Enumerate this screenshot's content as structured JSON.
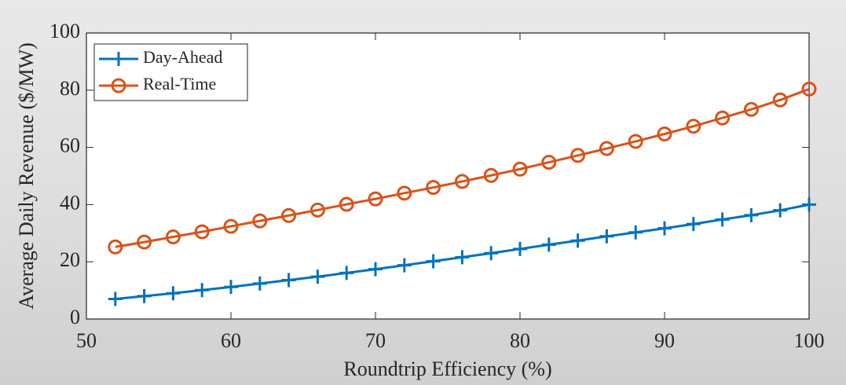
{
  "chart_data": {
    "type": "line",
    "xlabel": "Roundtrip Efficiency (%)",
    "ylabel": "Average Daily Revenue ($/MW)",
    "x": [
      52,
      54,
      56,
      58,
      60,
      62,
      64,
      66,
      68,
      70,
      72,
      74,
      76,
      78,
      80,
      82,
      84,
      86,
      88,
      90,
      92,
      94,
      96,
      98,
      100
    ],
    "series": [
      {
        "name": "Day-Ahead",
        "color": "#0072bd",
        "marker": "plus",
        "values": [
          7,
          8,
          9,
          10.1,
          11.2,
          12.4,
          13.6,
          14.8,
          16.1,
          17.4,
          18.8,
          20.2,
          21.6,
          23,
          24.5,
          26,
          27.4,
          28.9,
          30.3,
          31.7,
          33.2,
          34.8,
          36.3,
          38,
          40
        ]
      },
      {
        "name": "Real-Time",
        "color": "#d95319",
        "marker": "circle",
        "values": [
          25.2,
          26.9,
          28.7,
          30.5,
          32.4,
          34.3,
          36.2,
          38.1,
          40.1,
          42,
          44,
          46,
          48.1,
          50.2,
          52.4,
          54.8,
          57.2,
          59.6,
          62.1,
          64.7,
          67.4,
          70.3,
          73.3,
          76.6,
          80.4
        ]
      }
    ],
    "xlim": [
      50,
      100
    ],
    "xticks": [
      50,
      60,
      70,
      80,
      90,
      100
    ],
    "ylim": [
      0,
      100
    ],
    "yticks": [
      0,
      20,
      40,
      60,
      80,
      100
    ],
    "grid": false,
    "legend": "upper left"
  }
}
